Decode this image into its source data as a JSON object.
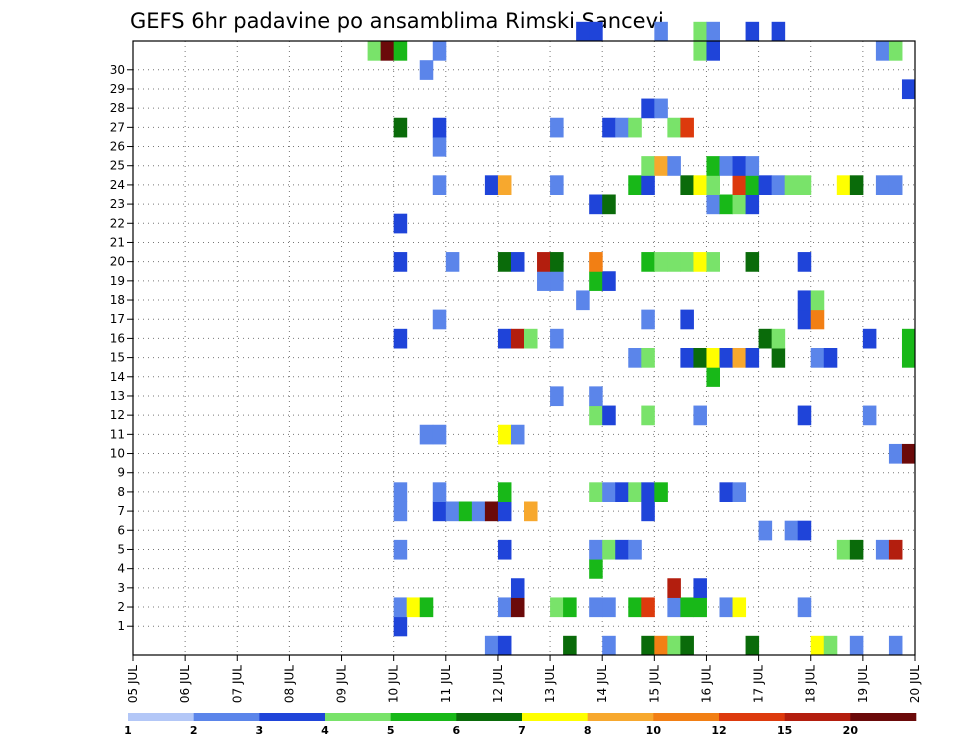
{
  "chart_data": {
    "type": "heatmap",
    "title": "GEFS 6hr padavine po ansamblima Rimski Sancevi",
    "x_tick_labels": [
      "05 JUL",
      "06 JUL",
      "07 JUL",
      "08 JUL",
      "09 JUL",
      "10 JUL",
      "11 JUL",
      "12 JUL",
      "13 JUL",
      "14 JUL",
      "15 JUL",
      "16 JUL",
      "17 JUL",
      "18 JUL",
      "19 JUL",
      "20 JUL"
    ],
    "y_tick_labels": [
      "1",
      "2",
      "3",
      "4",
      "5",
      "6",
      "7",
      "8",
      "9",
      "10",
      "11",
      "12",
      "13",
      "14",
      "15",
      "16",
      "17",
      "18",
      "19",
      "20",
      "21",
      "22",
      "23",
      "24",
      "25",
      "26",
      "27",
      "28",
      "29",
      "30"
    ],
    "xlim": [
      0,
      60
    ],
    "ylim": [
      0,
      30
    ],
    "grid": true,
    "legend": {
      "placement": "bottom",
      "labels": [
        "1",
        "2",
        "3",
        "4",
        "5",
        "6",
        "7",
        "8",
        "10",
        "12",
        "15",
        "20"
      ],
      "colors": [
        "#b3c7f7",
        "#5b85ea",
        "#1f44d9",
        "#79e36a",
        "#18b818",
        "#0a6b0a",
        "#ffff00",
        "#f7a82e",
        "#f27f14",
        "#dd3a0d",
        "#b31e0e",
        "#6b0a0a"
      ]
    },
    "cells": [
      [
        0,
        27,
        1
      ],
      [
        0,
        28,
        2
      ],
      [
        0,
        33,
        5
      ],
      [
        0,
        36,
        1
      ],
      [
        0,
        39,
        5
      ],
      [
        0,
        40,
        8
      ],
      [
        0,
        41,
        3
      ],
      [
        0,
        42,
        5
      ],
      [
        0,
        47,
        5
      ],
      [
        0,
        52,
        6
      ],
      [
        0,
        53,
        3
      ],
      [
        0,
        55,
        1
      ],
      [
        0,
        58,
        1
      ],
      [
        1,
        20,
        2
      ],
      [
        2,
        20,
        1
      ],
      [
        2,
        21,
        6
      ],
      [
        2,
        22,
        4
      ],
      [
        2,
        28,
        1
      ],
      [
        2,
        29,
        11
      ],
      [
        2,
        32,
        3
      ],
      [
        2,
        33,
        4
      ],
      [
        2,
        35,
        1
      ],
      [
        2,
        36,
        1
      ],
      [
        2,
        38,
        4
      ],
      [
        2,
        39,
        9
      ],
      [
        2,
        41,
        1
      ],
      [
        2,
        42,
        4
      ],
      [
        2,
        43,
        4
      ],
      [
        2,
        45,
        1
      ],
      [
        2,
        46,
        6
      ],
      [
        2,
        51,
        1
      ],
      [
        3,
        29,
        2
      ],
      [
        3,
        41,
        10
      ],
      [
        3,
        43,
        2
      ],
      [
        4,
        35,
        4
      ],
      [
        5,
        20,
        1
      ],
      [
        5,
        28,
        2
      ],
      [
        5,
        35,
        1
      ],
      [
        5,
        36,
        3
      ],
      [
        5,
        37,
        2
      ],
      [
        5,
        38,
        1
      ],
      [
        5,
        54,
        3
      ],
      [
        5,
        55,
        5
      ],
      [
        5,
        57,
        1
      ],
      [
        5,
        58,
        10
      ],
      [
        6,
        48,
        1
      ],
      [
        6,
        50,
        1
      ],
      [
        6,
        51,
        2
      ],
      [
        7,
        20,
        1
      ],
      [
        7,
        23,
        2
      ],
      [
        7,
        24,
        1
      ],
      [
        7,
        25,
        4
      ],
      [
        7,
        26,
        1
      ],
      [
        7,
        27,
        11
      ],
      [
        7,
        28,
        2
      ],
      [
        7,
        30,
        7
      ],
      [
        7,
        39,
        2
      ],
      [
        8,
        20,
        1
      ],
      [
        8,
        23,
        1
      ],
      [
        8,
        28,
        4
      ],
      [
        8,
        35,
        3
      ],
      [
        8,
        36,
        1
      ],
      [
        8,
        37,
        2
      ],
      [
        8,
        38,
        3
      ],
      [
        8,
        39,
        2
      ],
      [
        8,
        40,
        4
      ],
      [
        8,
        45,
        2
      ],
      [
        8,
        46,
        1
      ],
      [
        10,
        58,
        1
      ],
      [
        10,
        59,
        11
      ],
      [
        11,
        22,
        1
      ],
      [
        11,
        23,
        1
      ],
      [
        11,
        28,
        6
      ],
      [
        11,
        29,
        1
      ],
      [
        12,
        35,
        3
      ],
      [
        12,
        36,
        2
      ],
      [
        12,
        39,
        3
      ],
      [
        12,
        43,
        1
      ],
      [
        12,
        51,
        2
      ],
      [
        12,
        56,
        1
      ],
      [
        13,
        32,
        1
      ],
      [
        13,
        35,
        1
      ],
      [
        14,
        44,
        4
      ],
      [
        15,
        38,
        1
      ],
      [
        15,
        39,
        3
      ],
      [
        15,
        42,
        2
      ],
      [
        15,
        43,
        5
      ],
      [
        15,
        44,
        6
      ],
      [
        15,
        45,
        2
      ],
      [
        15,
        46,
        7
      ],
      [
        15,
        47,
        2
      ],
      [
        15,
        49,
        5
      ],
      [
        15,
        52,
        1
      ],
      [
        15,
        53,
        2
      ],
      [
        15,
        59,
        4
      ],
      [
        16,
        20,
        2
      ],
      [
        16,
        28,
        2
      ],
      [
        16,
        29,
        10
      ],
      [
        16,
        30,
        3
      ],
      [
        16,
        32,
        1
      ],
      [
        16,
        48,
        5
      ],
      [
        16,
        49,
        3
      ],
      [
        16,
        56,
        2
      ],
      [
        16,
        59,
        4
      ],
      [
        17,
        23,
        1
      ],
      [
        17,
        39,
        1
      ],
      [
        17,
        42,
        2
      ],
      [
        17,
        51,
        2
      ],
      [
        17,
        52,
        8
      ],
      [
        18,
        34,
        1
      ],
      [
        18,
        51,
        2
      ],
      [
        18,
        52,
        3
      ],
      [
        19,
        31,
        1
      ],
      [
        19,
        32,
        1
      ],
      [
        19,
        35,
        4
      ],
      [
        19,
        36,
        2
      ],
      [
        20,
        20,
        2
      ],
      [
        20,
        24,
        1
      ],
      [
        20,
        28,
        5
      ],
      [
        20,
        29,
        2
      ],
      [
        20,
        31,
        10
      ],
      [
        20,
        32,
        5
      ],
      [
        20,
        35,
        8
      ],
      [
        20,
        39,
        4
      ],
      [
        20,
        40,
        3
      ],
      [
        20,
        41,
        3
      ],
      [
        20,
        42,
        3
      ],
      [
        20,
        43,
        6
      ],
      [
        20,
        44,
        3
      ],
      [
        20,
        47,
        5
      ],
      [
        20,
        51,
        2
      ],
      [
        22,
        20,
        2
      ],
      [
        23,
        35,
        2
      ],
      [
        23,
        36,
        5
      ],
      [
        23,
        44,
        1
      ],
      [
        23,
        45,
        4
      ],
      [
        23,
        46,
        3
      ],
      [
        23,
        47,
        2
      ],
      [
        24,
        23,
        1
      ],
      [
        24,
        27,
        2
      ],
      [
        24,
        28,
        7
      ],
      [
        24,
        32,
        1
      ],
      [
        24,
        38,
        4
      ],
      [
        24,
        39,
        2
      ],
      [
        24,
        42,
        5
      ],
      [
        24,
        43,
        6
      ],
      [
        24,
        44,
        3
      ],
      [
        24,
        46,
        9
      ],
      [
        24,
        47,
        4
      ],
      [
        24,
        48,
        2
      ],
      [
        24,
        49,
        1
      ],
      [
        24,
        50,
        3
      ],
      [
        24,
        51,
        3
      ],
      [
        24,
        54,
        6
      ],
      [
        24,
        55,
        5
      ],
      [
        24,
        57,
        1
      ],
      [
        24,
        58,
        1
      ],
      [
        25,
        39,
        3
      ],
      [
        25,
        40,
        7
      ],
      [
        25,
        41,
        1
      ],
      [
        25,
        44,
        4
      ],
      [
        25,
        45,
        1
      ],
      [
        25,
        46,
        2
      ],
      [
        25,
        47,
        1
      ],
      [
        26,
        23,
        1
      ],
      [
        27,
        20,
        5
      ],
      [
        27,
        23,
        2
      ],
      [
        27,
        32,
        1
      ],
      [
        27,
        36,
        2
      ],
      [
        27,
        37,
        1
      ],
      [
        27,
        38,
        3
      ],
      [
        27,
        41,
        3
      ],
      [
        27,
        42,
        9
      ],
      [
        28,
        39,
        2
      ],
      [
        28,
        40,
        1
      ],
      [
        29,
        59,
        2
      ],
      [
        30,
        22,
        1
      ],
      [
        31,
        18,
        3
      ],
      [
        31,
        19,
        11
      ],
      [
        31,
        20,
        4
      ],
      [
        31,
        23,
        1
      ],
      [
        31,
        43,
        3
      ],
      [
        31,
        44,
        2
      ],
      [
        31,
        57,
        1
      ],
      [
        31,
        58,
        3
      ],
      [
        32,
        34,
        2
      ],
      [
        32,
        35,
        2
      ],
      [
        32,
        40,
        1
      ],
      [
        32,
        43,
        3
      ],
      [
        32,
        44,
        1
      ],
      [
        32,
        47,
        2
      ],
      [
        32,
        49,
        2
      ]
    ]
  }
}
